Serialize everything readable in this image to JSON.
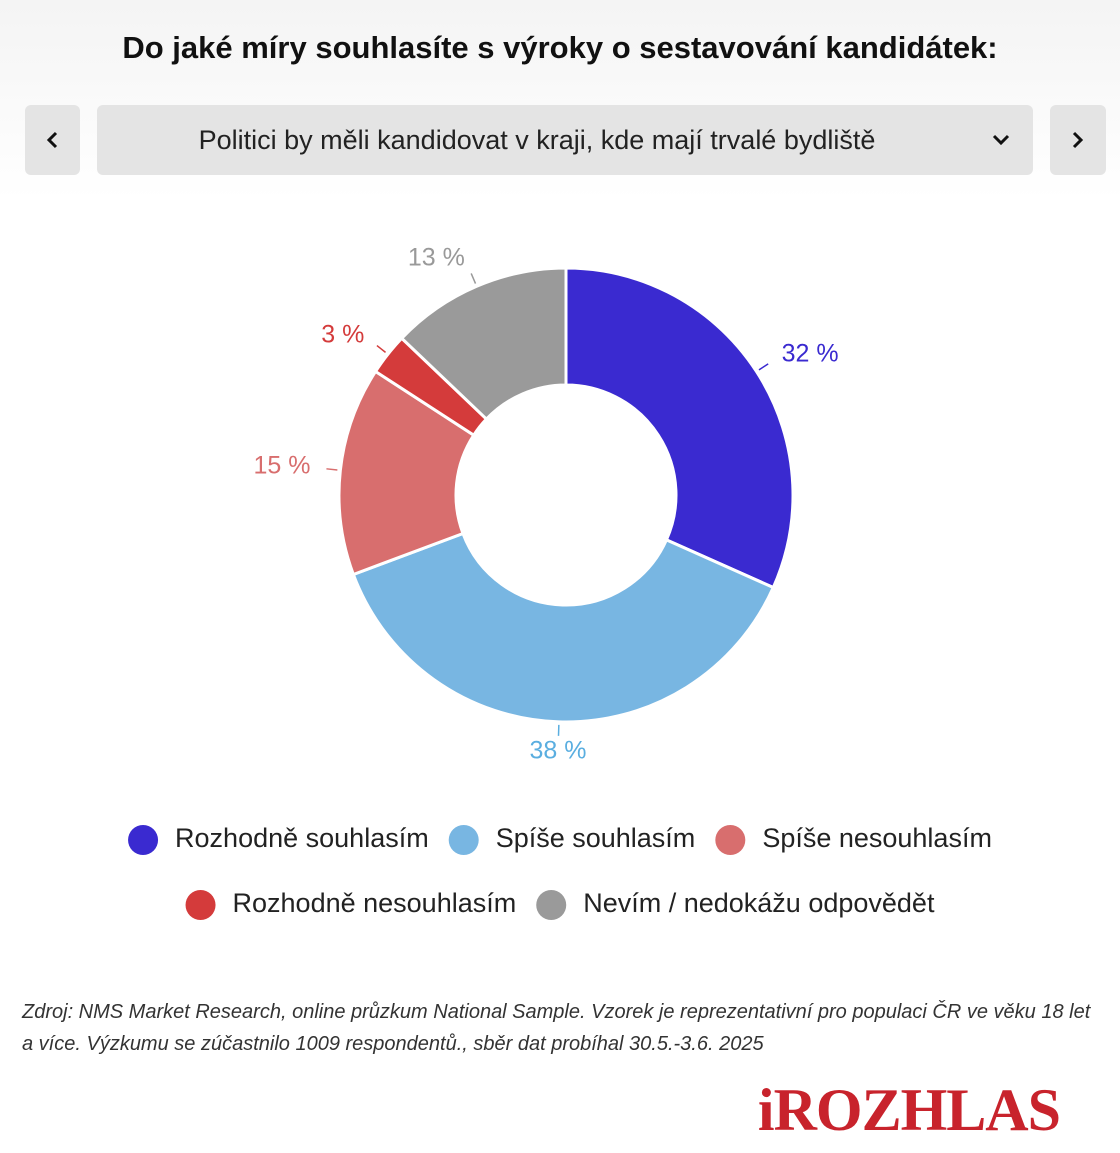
{
  "chart_data": {
    "type": "donut",
    "title": "Do jaké míry souhlasíte s výroky o sestavování kandidátek:",
    "subtitle": "Politici by měli kandidovat v kraji, kde mají trvalé bydliště",
    "categories": [
      "Rozhodně souhlasím",
      "Spíše souhlasím",
      "Spíše nesouhlasím",
      "Rozhodně nesouhlasím",
      "Nevím / nedokážu odpovědět"
    ],
    "values": [
      32,
      38,
      15,
      3,
      13
    ],
    "value_labels": [
      "32 %",
      "38 %",
      "15 %",
      "3 %",
      "13 %"
    ],
    "colors": [
      "#3a2ad0",
      "#78b6e2",
      "#d86e6e",
      "#d43b3b",
      "#9a9a9a"
    ],
    "label_colors": [
      "#3a2ad0",
      "#5aaee0",
      "#d86e6e",
      "#d43b3b",
      "#999999"
    ],
    "legend": "bottom",
    "source": "Zdroj: NMS Market Research, online průzkum National Sample. Vzorek je reprezentativní pro populaci ČR ve věku 18 let a více. Výzkumu se zúčastnilo 1009 respondentů., sběr dat probíhal 30.5.-3.6. 2025",
    "logo": "iROZHLAS"
  }
}
